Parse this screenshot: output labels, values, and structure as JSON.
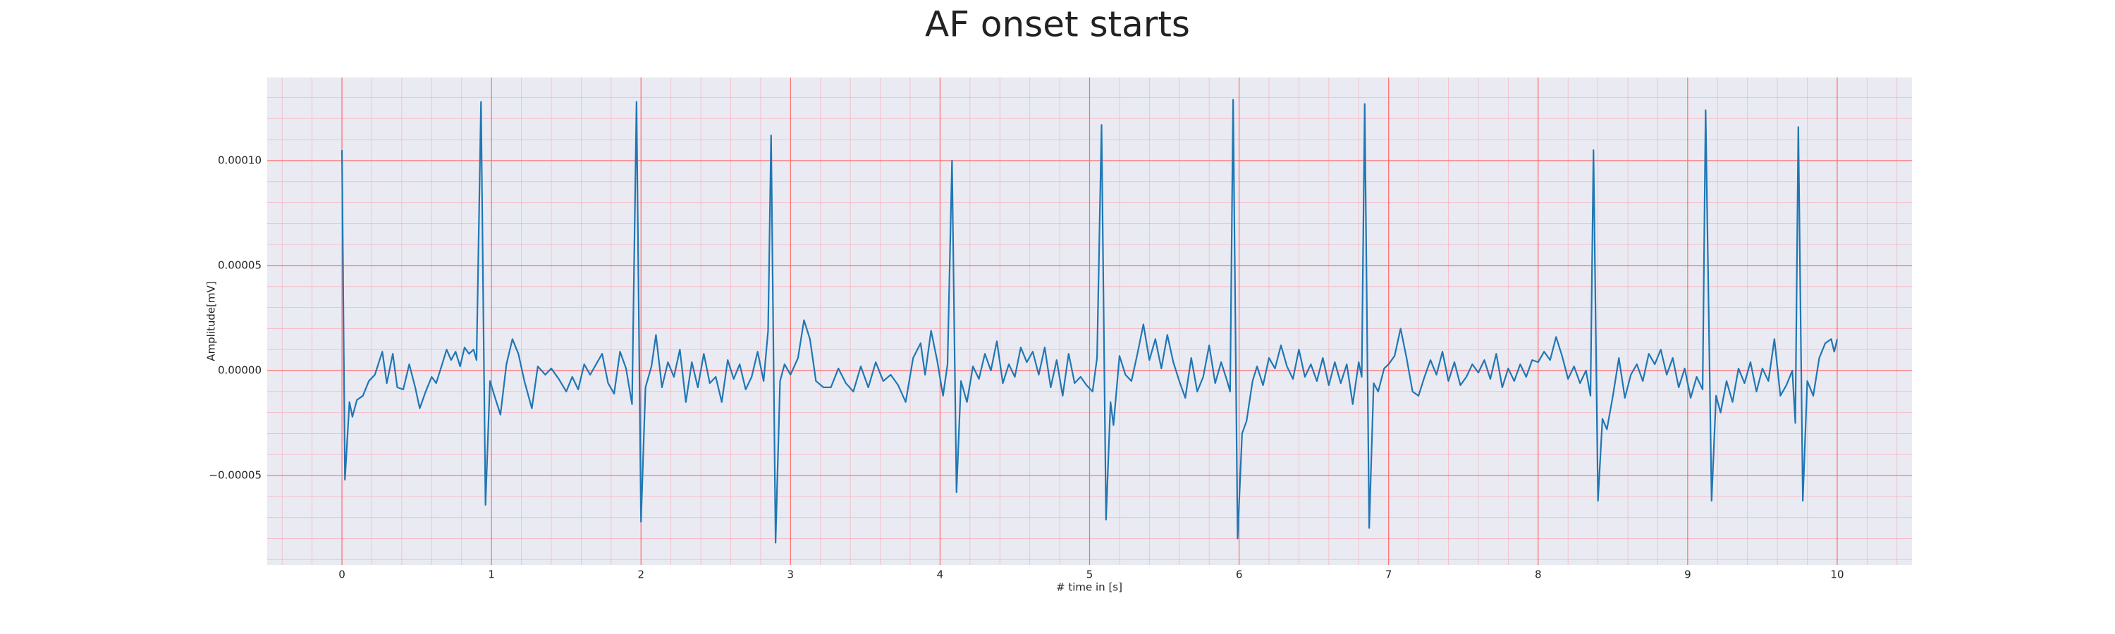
{
  "chart_data": {
    "type": "line",
    "title": "AF onset starts",
    "xlabel": "# time in [s]",
    "ylabel": "Amplitude[mV]",
    "color": "#1f77b4",
    "background": "#eaeaf2",
    "grid": true,
    "grid_color": "#ff6b6b",
    "minor_grid_color": "#f6b8c4",
    "xlim": [
      -0.5,
      10.5
    ],
    "ylim": [
      -9.26e-05,
      0.0001396
    ],
    "xticks": [
      0,
      1,
      2,
      3,
      4,
      5,
      6,
      7,
      8,
      9,
      10
    ],
    "yticks": [
      {
        "value": -5e-05,
        "label": "−0.00005"
      },
      {
        "value": 0,
        "label": "0.00000"
      },
      {
        "value": 5e-05,
        "label": "0.00005"
      },
      {
        "value": 0.0001,
        "label": "0.00010"
      }
    ],
    "xminorticks": [
      -0.4,
      -0.2,
      0.2,
      0.4,
      0.6,
      0.8,
      1.2,
      1.4,
      1.6,
      1.8,
      2.2,
      2.4,
      2.6,
      2.8,
      3.2,
      3.4,
      3.6,
      3.8,
      4.2,
      4.4,
      4.6,
      4.8,
      5.2,
      5.4,
      5.6,
      5.8,
      6.2,
      6.4,
      6.6,
      6.8,
      7.2,
      7.4,
      7.6,
      7.8,
      8.2,
      8.4,
      8.6,
      8.8,
      9.2,
      9.4,
      9.6,
      9.8,
      10.2,
      10.4
    ],
    "yminorticks": [
      -9e-05,
      -8e-05,
      -7e-05,
      -6e-05,
      -4e-05,
      -3e-05,
      -2e-05,
      -1e-05,
      1e-05,
      2e-05,
      3e-05,
      4e-05,
      6e-05,
      7e-05,
      8e-05,
      9e-05,
      0.00011,
      0.00012,
      0.00013
    ],
    "x": [
      0,
      0.02,
      0.05,
      0.07,
      0.1,
      0.14,
      0.18,
      0.22,
      0.27,
      0.3,
      0.34,
      0.37,
      0.41,
      0.45,
      0.49,
      0.52,
      0.56,
      0.6,
      0.63,
      0.67,
      0.7,
      0.73,
      0.76,
      0.79,
      0.82,
      0.85,
      0.88,
      0.9,
      0.93,
      0.96,
      0.99,
      1.02,
      1.06,
      1.1,
      1.14,
      1.18,
      1.22,
      1.27,
      1.31,
      1.36,
      1.4,
      1.45,
      1.5,
      1.54,
      1.58,
      1.62,
      1.66,
      1.7,
      1.74,
      1.78,
      1.82,
      1.86,
      1.9,
      1.94,
      1.97,
      2.0,
      2.03,
      2.07,
      2.1,
      2.14,
      2.18,
      2.22,
      2.26,
      2.3,
      2.34,
      2.38,
      2.42,
      2.46,
      2.5,
      2.54,
      2.58,
      2.62,
      2.66,
      2.7,
      2.74,
      2.78,
      2.82,
      2.85,
      2.87,
      2.9,
      2.93,
      2.96,
      3.0,
      3.05,
      3.09,
      3.13,
      3.17,
      3.22,
      3.27,
      3.32,
      3.37,
      3.42,
      3.47,
      3.52,
      3.57,
      3.62,
      3.67,
      3.72,
      3.77,
      3.82,
      3.87,
      3.9,
      3.94,
      3.98,
      4.02,
      4.05,
      4.08,
      4.11,
      4.14,
      4.18,
      4.22,
      4.26,
      4.3,
      4.34,
      4.38,
      4.42,
      4.46,
      4.5,
      4.54,
      4.58,
      4.62,
      4.66,
      4.7,
      4.74,
      4.78,
      4.82,
      4.86,
      4.9,
      4.94,
      4.98,
      5.02,
      5.05,
      5.08,
      5.11,
      5.14,
      5.16,
      5.2,
      5.24,
      5.28,
      5.32,
      5.36,
      5.4,
      5.44,
      5.48,
      5.52,
      5.56,
      5.6,
      5.64,
      5.68,
      5.72,
      5.76,
      5.8,
      5.84,
      5.88,
      5.92,
      5.94,
      5.96,
      5.99,
      6.02,
      6.05,
      6.09,
      6.12,
      6.16,
      6.2,
      6.24,
      6.28,
      6.32,
      6.36,
      6.4,
      6.44,
      6.48,
      6.52,
      6.56,
      6.6,
      6.64,
      6.68,
      6.72,
      6.76,
      6.8,
      6.82,
      6.84,
      6.87,
      6.9,
      6.93,
      6.97,
      7.0,
      7.04,
      7.08,
      7.12,
      7.16,
      7.2,
      7.24,
      7.28,
      7.32,
      7.36,
      7.4,
      7.44,
      7.48,
      7.52,
      7.56,
      7.6,
      7.64,
      7.68,
      7.72,
      7.76,
      7.8,
      7.84,
      7.88,
      7.92,
      7.96,
      8.0,
      8.04,
      8.08,
      8.12,
      8.16,
      8.2,
      8.24,
      8.28,
      8.32,
      8.35,
      8.37,
      8.4,
      8.43,
      8.46,
      8.5,
      8.54,
      8.58,
      8.62,
      8.66,
      8.7,
      8.74,
      8.78,
      8.82,
      8.86,
      8.9,
      8.94,
      8.98,
      9.02,
      9.06,
      9.1,
      9.12,
      9.16,
      9.19,
      9.22,
      9.26,
      9.3,
      9.34,
      9.38,
      9.42,
      9.46,
      9.5,
      9.54,
      9.58,
      9.62,
      9.66,
      9.7,
      9.72,
      9.74,
      9.77,
      9.8,
      9.84,
      9.88,
      9.92,
      9.96,
      9.98,
      10.0
    ],
    "values": [
      0.000105,
      -5.2e-05,
      -1.5e-05,
      -2.2e-05,
      -1.4e-05,
      -1.2e-05,
      -5e-06,
      -2e-06,
      9e-06,
      -6e-06,
      8e-06,
      -8e-06,
      -9e-06,
      3e-06,
      -8e-06,
      -1.8e-05,
      -1e-05,
      -3e-06,
      -6e-06,
      3e-06,
      1e-05,
      5e-06,
      9e-06,
      2e-06,
      1.1e-05,
      8e-06,
      1e-05,
      5e-06,
      0.000128,
      -6.4e-05,
      -5e-06,
      -1.2e-05,
      -2.1e-05,
      3e-06,
      1.5e-05,
      8e-06,
      -5e-06,
      -1.8e-05,
      2e-06,
      -2e-06,
      1e-06,
      -4e-06,
      -1e-05,
      -3e-06,
      -9e-06,
      3e-06,
      -2e-06,
      3e-06,
      8e-06,
      -6e-06,
      -1.1e-05,
      9e-06,
      1e-06,
      -1.6e-05,
      0.000128,
      -7.2e-05,
      -8e-06,
      2e-06,
      1.7e-05,
      -8e-06,
      4e-06,
      -3e-06,
      1e-05,
      -1.5e-05,
      4e-06,
      -8e-06,
      8e-06,
      -6e-06,
      -3e-06,
      -1.5e-05,
      5e-06,
      -4e-06,
      3e-06,
      -9e-06,
      -3e-06,
      9e-06,
      -5e-06,
      1.9e-05,
      0.000112,
      -8.2e-05,
      -5e-06,
      3e-06,
      -2e-06,
      6e-06,
      2.4e-05,
      1.5e-05,
      -5e-06,
      -8e-06,
      -8e-06,
      1e-06,
      -6e-06,
      -1e-05,
      2e-06,
      -8e-06,
      4e-06,
      -5e-06,
      -2e-06,
      -7e-06,
      -1.5e-05,
      6e-06,
      1.3e-05,
      -2e-06,
      1.9e-05,
      5e-06,
      -1.2e-05,
      3e-06,
      0.0001,
      -5.8e-05,
      -5e-06,
      -1.5e-05,
      2e-06,
      -4e-06,
      8e-06,
      0,
      1.4e-05,
      -6e-06,
      3e-06,
      -3e-06,
      1.1e-05,
      4e-06,
      9e-06,
      -2e-06,
      1.1e-05,
      -8e-06,
      5e-06,
      -1.2e-05,
      8e-06,
      -6e-06,
      -3e-06,
      -7e-06,
      -1e-05,
      6e-06,
      0.000117,
      -7.1e-05,
      -1.5e-05,
      -2.6e-05,
      7e-06,
      -2e-06,
      -5e-06,
      8e-06,
      2.2e-05,
      5e-06,
      1.5e-05,
      1e-06,
      1.7e-05,
      4e-06,
      -5e-06,
      -1.3e-05,
      6e-06,
      -1e-05,
      -3e-06,
      1.2e-05,
      -6e-06,
      4e-06,
      -5e-06,
      -1e-05,
      0.000129,
      -8e-05,
      -3e-05,
      -2.4e-05,
      -5e-06,
      2e-06,
      -7e-06,
      6e-06,
      1e-06,
      1.2e-05,
      2e-06,
      -4e-06,
      1e-05,
      -3e-06,
      3e-06,
      -5e-06,
      6e-06,
      -7e-06,
      4e-06,
      -6e-06,
      3e-06,
      -1.6e-05,
      4e-06,
      -3e-06,
      0.000127,
      -7.5e-05,
      -6e-06,
      -1e-05,
      1e-06,
      3e-06,
      7e-06,
      2e-05,
      6e-06,
      -1e-05,
      -1.2e-05,
      -3e-06,
      5e-06,
      -2e-06,
      9e-06,
      -5e-06,
      4e-06,
      -7e-06,
      -3e-06,
      3e-06,
      -1e-06,
      5e-06,
      -4e-06,
      8e-06,
      -8e-06,
      1e-06,
      -5e-06,
      3e-06,
      -3e-06,
      5e-06,
      4e-06,
      9e-06,
      5e-06,
      1.6e-05,
      7e-06,
      -4e-06,
      2e-06,
      -6e-06,
      0,
      -1.2e-05,
      0.000105,
      -6.2e-05,
      -2.3e-05,
      -2.8e-05,
      -1.2e-05,
      6e-06,
      -1.3e-05,
      -2e-06,
      3e-06,
      -5e-06,
      8e-06,
      3e-06,
      1e-05,
      -2e-06,
      6e-06,
      -8e-06,
      1e-06,
      -1.3e-05,
      -3e-06,
      -9e-06,
      0.000124,
      -6.2e-05,
      -1.2e-05,
      -2e-05,
      -5e-06,
      -1.5e-05,
      1e-06,
      -6e-06,
      4e-06,
      -1e-05,
      1e-06,
      -5e-06,
      1.5e-05,
      -1.2e-05,
      -7e-06,
      0,
      -2.5e-05,
      0.000116,
      -6.2e-05,
      -5e-06,
      -1.2e-05,
      6e-06,
      1.3e-05,
      1.5e-05,
      9e-06,
      1.5e-05
    ]
  }
}
